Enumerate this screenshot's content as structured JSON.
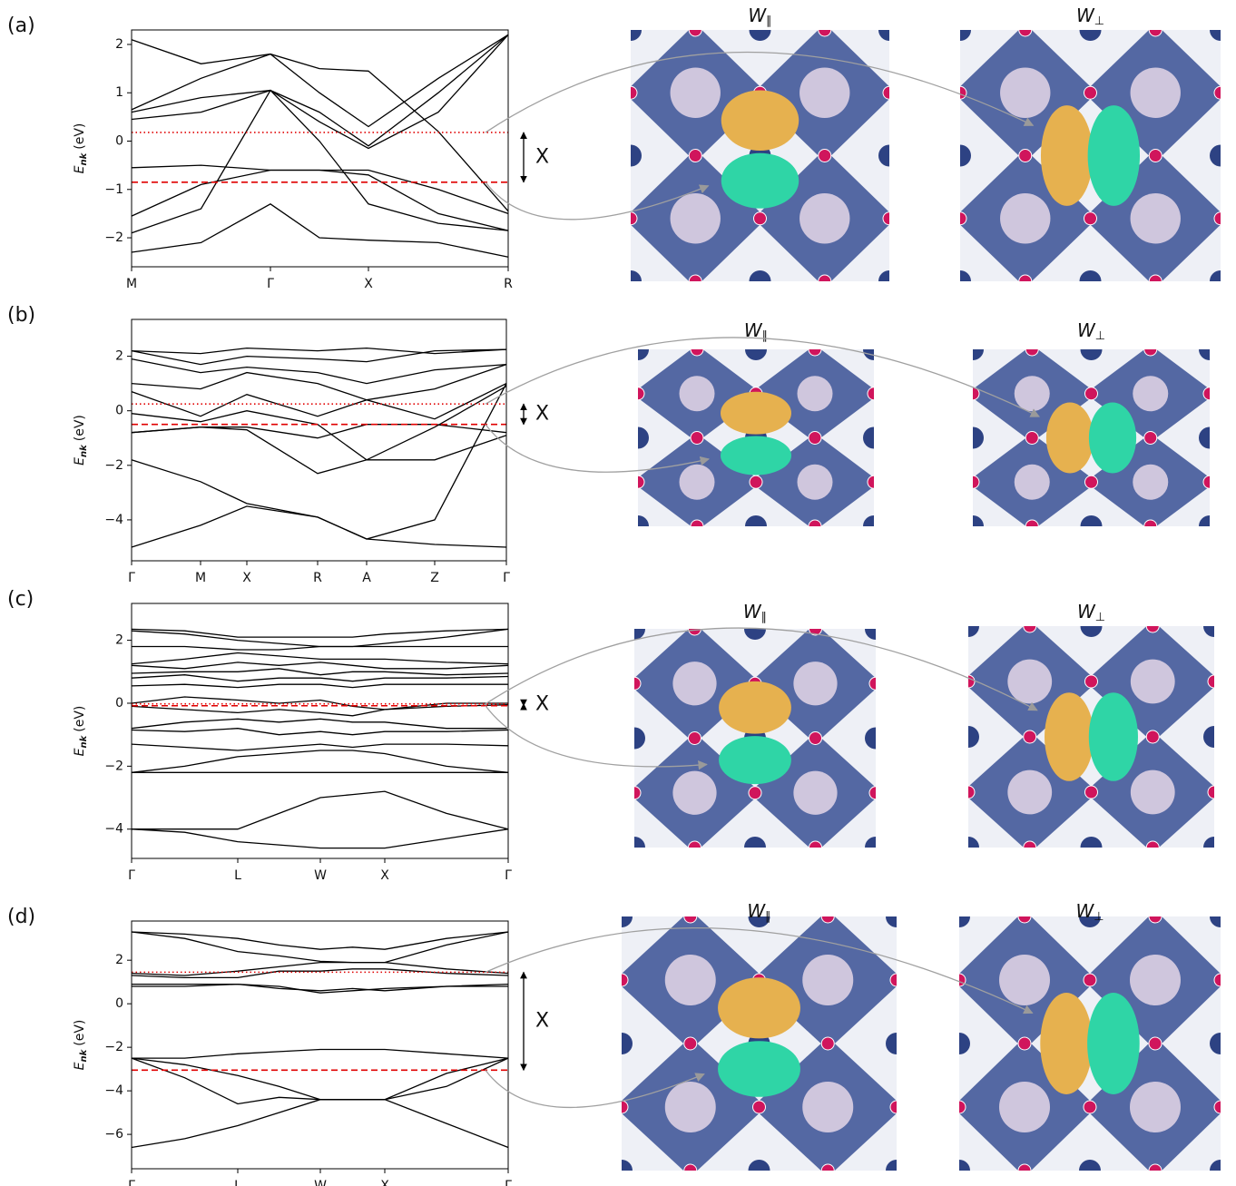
{
  "chart_data": [
    {
      "type": "line",
      "panel_label": "(a)",
      "ylabel": {
        "symbol": "E",
        "sub": "nk",
        "unit": "(eV)"
      },
      "x": [
        0,
        0.765,
        1.53,
        2.07,
        2.61,
        3.38,
        4.15
      ],
      "xlim": [
        0,
        4.15
      ],
      "xticks": [
        {
          "value": 0,
          "label": "M"
        },
        {
          "value": 1.53,
          "label": "Γ"
        },
        {
          "value": 2.61,
          "label": "X"
        },
        {
          "value": 4.15,
          "label": "R"
        }
      ],
      "ylim": [
        -2.6,
        2.3
      ],
      "yticks": [
        {
          "value": -2,
          "label": "−2"
        },
        {
          "value": -1,
          "label": "−1"
        },
        0,
        1,
        2
      ],
      "line_color": "#000000",
      "series": [
        {
          "values": [
            2.1,
            1.6,
            1.8,
            1.5,
            1.45,
            0.2,
            -1.45
          ]
        },
        {
          "values": [
            0.65,
            1.3,
            1.8,
            1.0,
            0.3,
            1.3,
            2.2
          ]
        },
        {
          "values": [
            0.6,
            0.9,
            1.05,
            0.6,
            -0.1,
            1.0,
            2.2
          ]
        },
        {
          "values": [
            0.45,
            0.6,
            1.05,
            0.4,
            -0.15,
            0.6,
            2.2
          ]
        },
        {
          "values": [
            -0.55,
            -0.5,
            -0.6,
            -0.6,
            -0.6,
            -1.0,
            -1.5
          ]
        },
        {
          "values": [
            -1.55,
            -0.9,
            -0.6,
            -0.6,
            -0.7,
            -1.5,
            -1.85
          ]
        },
        {
          "values": [
            -1.9,
            -1.4,
            1.05,
            0.0,
            -1.3,
            -1.7,
            -1.85
          ]
        },
        {
          "values": [
            -2.3,
            -2.1,
            -1.3,
            -2.0,
            -2.05,
            -2.1,
            -2.4
          ]
        }
      ],
      "hlines": [
        {
          "value": 0.18,
          "style": "dotted",
          "color": "#e00000"
        },
        {
          "value": -0.85,
          "style": "dashed",
          "color": "#e00000"
        }
      ],
      "annotation": "X",
      "image_titles": [
        {
          "text": "W",
          "sub": "∥"
        },
        {
          "text": "W",
          "sub": "⊥"
        }
      ]
    },
    {
      "type": "line",
      "panel_label": "(b)",
      "ylabel": {
        "symbol": "E",
        "sub": "nk",
        "unit": "(eV)"
      },
      "x": [
        0,
        0.76,
        1.27,
        2.05,
        2.59,
        3.34,
        4.13
      ],
      "xlim": [
        0,
        4.13
      ],
      "xticks": [
        {
          "value": 0,
          "label": "Γ"
        },
        {
          "value": 0.76,
          "label": "M"
        },
        {
          "value": 1.27,
          "label": "X"
        },
        {
          "value": 2.05,
          "label": "R"
        },
        {
          "value": 2.59,
          "label": "A"
        },
        {
          "value": 3.34,
          "label": "Z"
        },
        {
          "value": 4.13,
          "label": "Γ"
        }
      ],
      "ylim": [
        -5.5,
        3.35
      ],
      "yticks": [
        {
          "value": -4,
          "label": "−4"
        },
        {
          "value": -2,
          "label": "−2"
        },
        0,
        2
      ],
      "line_color": "#000000",
      "series": [
        {
          "values": [
            2.2,
            2.1,
            2.3,
            2.2,
            2.3,
            2.1,
            2.25
          ]
        },
        {
          "values": [
            2.2,
            1.7,
            2.0,
            1.9,
            1.8,
            2.2,
            2.25
          ]
        },
        {
          "values": [
            1.9,
            1.4,
            1.6,
            1.4,
            1.0,
            1.5,
            1.7
          ]
        },
        {
          "values": [
            1.0,
            0.8,
            1.4,
            1.0,
            0.4,
            0.8,
            1.7
          ]
        },
        {
          "values": [
            0.7,
            -0.2,
            0.6,
            -0.2,
            0.4,
            -0.3,
            1.0
          ]
        },
        {
          "values": [
            -0.1,
            -0.4,
            0.0,
            -0.5,
            -1.8,
            -0.6,
            0.9
          ]
        },
        {
          "values": [
            -0.8,
            -0.6,
            -0.6,
            -1.0,
            -0.5,
            -0.5,
            -0.8
          ]
        },
        {
          "values": [
            -0.8,
            -0.6,
            -0.7,
            -2.3,
            -1.8,
            -1.8,
            -0.9
          ]
        },
        {
          "values": [
            -1.8,
            -2.6,
            -3.4,
            -3.9,
            -4.7,
            -4.0,
            1.0
          ]
        },
        {
          "values": [
            -5.0,
            -4.2,
            -3.5,
            -3.9,
            -4.7,
            -4.9,
            -5.0
          ]
        }
      ],
      "hlines": [
        {
          "value": 0.25,
          "style": "dotted",
          "color": "#e00000"
        },
        {
          "value": -0.5,
          "style": "dashed",
          "color": "#e00000"
        }
      ],
      "annotation": "X",
      "image_titles": [
        {
          "text": "W",
          "sub": "∥"
        },
        {
          "text": "W",
          "sub": "⊥"
        }
      ]
    },
    {
      "type": "line",
      "panel_label": "(c)",
      "ylabel": {
        "symbol": "E",
        "sub": "nk",
        "unit": "(eV)"
      },
      "x": [
        0,
        0.585,
        1.17,
        1.625,
        2.08,
        2.435,
        2.79,
        3.47,
        4.15
      ],
      "xlim": [
        0,
        4.15
      ],
      "xticks": [
        {
          "value": 0,
          "label": "Γ"
        },
        {
          "value": 1.17,
          "label": "L"
        },
        {
          "value": 2.08,
          "label": "W"
        },
        {
          "value": 2.79,
          "label": "X"
        },
        {
          "value": 4.15,
          "label": "Γ"
        }
      ],
      "ylim": [
        -4.93,
        3.17
      ],
      "yticks": [
        {
          "value": -4,
          "label": "−4"
        },
        {
          "value": -2,
          "label": "−2"
        },
        0,
        2
      ],
      "line_color": "#000000",
      "series": [
        {
          "values": [
            2.35,
            2.3,
            2.1,
            2.1,
            2.1,
            2.1,
            2.2,
            2.3,
            2.35
          ]
        },
        {
          "values": [
            2.3,
            2.2,
            2.0,
            1.9,
            1.8,
            1.8,
            1.9,
            2.1,
            2.35
          ]
        },
        {
          "values": [
            1.8,
            1.8,
            1.7,
            1.7,
            1.8,
            1.8,
            1.8,
            1.8,
            1.8
          ]
        },
        {
          "values": [
            1.25,
            1.4,
            1.6,
            1.5,
            1.4,
            1.4,
            1.4,
            1.3,
            1.25
          ]
        },
        {
          "values": [
            1.2,
            1.1,
            1.3,
            1.2,
            1.3,
            1.2,
            1.1,
            1.1,
            1.2
          ]
        },
        {
          "values": [
            0.95,
            1.0,
            1.0,
            1.1,
            0.9,
            1.0,
            1.0,
            0.9,
            0.95
          ]
        },
        {
          "values": [
            0.8,
            0.9,
            0.7,
            0.8,
            0.8,
            0.7,
            0.8,
            0.8,
            0.85
          ]
        },
        {
          "values": [
            0.55,
            0.6,
            0.5,
            0.6,
            0.6,
            0.5,
            0.6,
            0.6,
            0.6
          ]
        },
        {
          "values": [
            0.0,
            0.2,
            0.1,
            0.0,
            0.1,
            -0.1,
            -0.2,
            0.0,
            0.0
          ]
        },
        {
          "values": [
            -0.1,
            -0.2,
            -0.3,
            -0.2,
            -0.3,
            -0.4,
            -0.2,
            -0.1,
            -0.05
          ]
        },
        {
          "values": [
            -0.8,
            -0.6,
            -0.5,
            -0.6,
            -0.5,
            -0.6,
            -0.6,
            -0.8,
            -0.8
          ]
        },
        {
          "values": [
            -0.85,
            -0.9,
            -0.8,
            -1.0,
            -0.9,
            -1.0,
            -0.9,
            -0.9,
            -0.85
          ]
        },
        {
          "values": [
            -1.3,
            -1.4,
            -1.5,
            -1.4,
            -1.3,
            -1.4,
            -1.3,
            -1.3,
            -1.35
          ]
        },
        {
          "values": [
            -2.2,
            -2.0,
            -1.7,
            -1.6,
            -1.5,
            -1.5,
            -1.6,
            -2.0,
            -2.2
          ]
        },
        {
          "values": [
            -2.2,
            -2.2,
            -2.2,
            -2.2,
            -2.2,
            -2.2,
            -2.2,
            -2.2,
            -2.2
          ]
        },
        {
          "values": [
            -4.0,
            -4.0,
            -4.0,
            -3.5,
            -3.0,
            -2.9,
            -2.8,
            -3.5,
            -4.0
          ]
        },
        {
          "values": [
            -4.0,
            -4.1,
            -4.4,
            -4.5,
            -4.6,
            -4.6,
            -4.6,
            -4.3,
            -4.0
          ]
        }
      ],
      "hlines": [
        {
          "value": -0.02,
          "style": "dotted",
          "color": "#e00000"
        },
        {
          "value": -0.08,
          "style": "dashed",
          "color": "#e00000"
        }
      ],
      "annotation": "X",
      "image_titles": [
        {
          "text": "W",
          "sub": "∥"
        },
        {
          "text": "W",
          "sub": "⊥"
        }
      ]
    },
    {
      "type": "line",
      "panel_label": "(d)",
      "ylabel": {
        "symbol": "E",
        "sub": "nk",
        "unit": "(eV)"
      },
      "x": [
        0,
        0.585,
        1.17,
        1.625,
        2.08,
        2.435,
        2.79,
        3.47,
        4.15
      ],
      "xlim": [
        0,
        4.15
      ],
      "xticks": [
        {
          "value": 0,
          "label": "Γ"
        },
        {
          "value": 1.17,
          "label": "L"
        },
        {
          "value": 2.08,
          "label": "W"
        },
        {
          "value": 2.79,
          "label": "X"
        },
        {
          "value": 4.15,
          "label": "Γ"
        }
      ],
      "ylim": [
        -7.58,
        3.8
      ],
      "yticks": [
        {
          "value": -6,
          "label": "−6"
        },
        {
          "value": -4,
          "label": "−4"
        },
        {
          "value": -2,
          "label": "−2"
        },
        0,
        2
      ],
      "line_color": "#000000",
      "series": [
        {
          "values": [
            3.3,
            3.2,
            3.0,
            2.7,
            2.5,
            2.6,
            2.5,
            3.0,
            3.3
          ]
        },
        {
          "values": [
            3.3,
            3.0,
            2.4,
            2.2,
            1.95,
            1.9,
            1.9,
            2.7,
            3.3
          ]
        },
        {
          "values": [
            1.4,
            1.3,
            1.5,
            1.7,
            1.9,
            1.9,
            1.9,
            1.6,
            1.4
          ]
        },
        {
          "values": [
            1.3,
            1.2,
            1.2,
            1.5,
            1.5,
            1.6,
            1.6,
            1.4,
            1.3
          ]
        },
        {
          "values": [
            0.9,
            0.9,
            0.9,
            0.7,
            0.6,
            0.7,
            0.6,
            0.8,
            0.9
          ]
        },
        {
          "values": [
            0.8,
            0.8,
            0.9,
            0.8,
            0.5,
            0.6,
            0.7,
            0.8,
            0.8
          ]
        },
        {
          "values": [
            -2.5,
            -2.5,
            -2.3,
            -2.2,
            -2.1,
            -2.1,
            -2.1,
            -2.3,
            -2.5
          ]
        },
        {
          "values": [
            -2.5,
            -2.8,
            -3.3,
            -3.8,
            -4.4,
            -4.4,
            -4.4,
            -3.2,
            -2.5
          ]
        },
        {
          "values": [
            -2.5,
            -3.4,
            -4.6,
            -4.3,
            -4.4,
            -4.4,
            -4.4,
            -3.8,
            -2.5
          ]
        },
        {
          "values": [
            -6.6,
            -6.2,
            -5.6,
            -5.0,
            -4.4,
            -4.4,
            -4.4,
            -5.5,
            -6.6
          ]
        }
      ],
      "hlines": [
        {
          "value": 1.45,
          "style": "dotted",
          "color": "#e00000"
        },
        {
          "value": -3.05,
          "style": "dashed",
          "color": "#e00000"
        }
      ],
      "annotation": "X",
      "image_titles": [
        {
          "text": "W",
          "sub": "∥"
        },
        {
          "text": "W",
          "sub": "⊥"
        }
      ]
    }
  ]
}
